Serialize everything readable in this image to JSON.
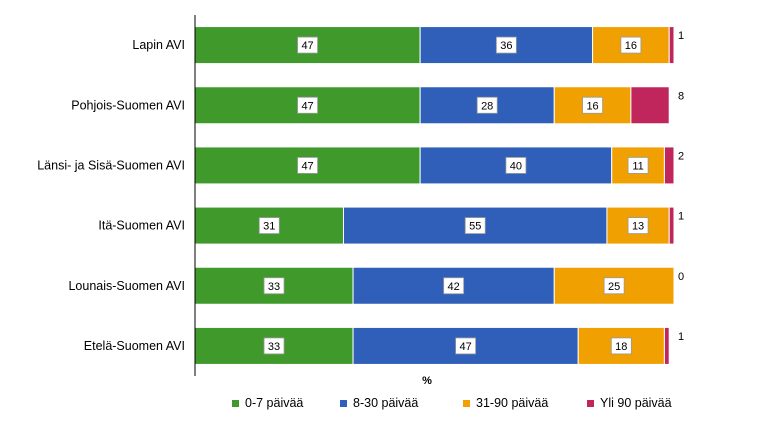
{
  "chart_data": {
    "type": "bar",
    "orientation": "horizontal",
    "stacked": true,
    "categories": [
      "Lapin AVI",
      "Pohjois-Suomen AVI",
      "Länsi- ja Sisä-Suomen AVI",
      "Itä-Suomen AVI",
      "Lounais-Suomen AVI",
      "Etelä-Suomen AVI"
    ],
    "series": [
      {
        "name": "0-7 päivää",
        "color": "#3f9a2b",
        "values": [
          47,
          47,
          47,
          31,
          33,
          33
        ]
      },
      {
        "name": "8-30 päivää",
        "color": "#2f5fb8",
        "values": [
          36,
          28,
          40,
          55,
          42,
          47
        ]
      },
      {
        "name": "31-90 päivää",
        "color": "#f0a000",
        "values": [
          16,
          16,
          11,
          13,
          25,
          18
        ]
      },
      {
        "name": "Yli 90 päivää",
        "color": "#c0255c",
        "values": [
          1,
          8,
          2,
          1,
          0,
          1
        ]
      }
    ],
    "xlabel": "%",
    "xlim": [
      0,
      100
    ],
    "grid": false,
    "legend_position": "bottom"
  }
}
